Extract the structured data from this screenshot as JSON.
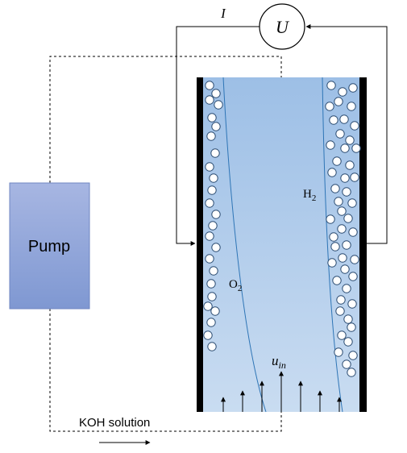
{
  "labels": {
    "current": "I",
    "voltage": "U",
    "pump": "Pump",
    "oxygen_main": "O",
    "oxygen_sub": "2",
    "hydrogen_main": "H",
    "hydrogen_sub": "2",
    "inlet_velocity_main": "u",
    "inlet_velocity_sub": "in",
    "koh_solution": "KOH solution"
  },
  "colors": {
    "electrolyte": "#a9c8e8",
    "electrode": "#000000",
    "pump_fill": "#8fa5d9",
    "pump_border": "#6f86c2",
    "bubble_edge": "#2f4f74",
    "plume_line": "#2e75b6"
  },
  "icons": {
    "voltmeter": "circle-U",
    "flow_arrow": "arrow-right"
  }
}
